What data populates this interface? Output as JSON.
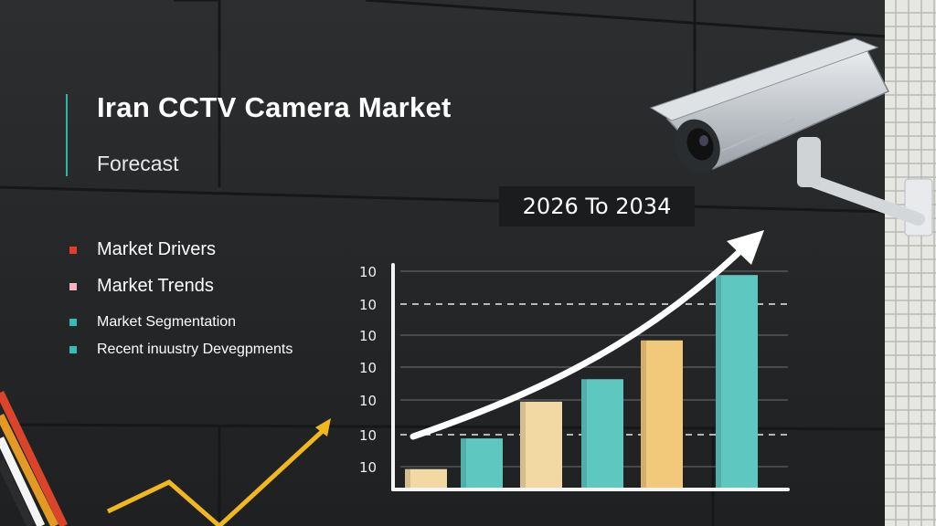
{
  "header": {
    "title": "Iran CCTV Camera Market",
    "subtitle": "Forecast"
  },
  "period_label": "2026 To 2034",
  "bullets": [
    {
      "label": "Market Drivers",
      "color": "#e0402b"
    },
    {
      "label": "Market Trends",
      "color": "#f2b6c0"
    },
    {
      "label": "Market Segmentation",
      "color": "#32c1b0"
    },
    {
      "label": "Recent inuustry Devegpments",
      "color": "#32c1b0"
    }
  ],
  "chart_data": {
    "type": "bar",
    "title": "",
    "xlabel": "",
    "ylabel": "",
    "y_tick_labels": [
      "10",
      "10",
      "10",
      "10",
      "10",
      "10",
      "10"
    ],
    "values": [
      1,
      2.5,
      4.3,
      5.4,
      7.3,
      10.5
    ],
    "bar_colors": [
      "#f2d9a4",
      "#5ec7c0",
      "#f2d9a4",
      "#5ec7c0",
      "#f2c87a",
      "#5ec7c0"
    ],
    "ylim": [
      0,
      11
    ],
    "grid": true,
    "trend_arrow": true
  },
  "colors": {
    "background": "#232527",
    "accent": "#2fb5a6",
    "stripe_red": "#d9442a",
    "stripe_orange": "#e39a25",
    "stripe_yellow": "#f0c21e"
  },
  "icons": [
    "cctv-camera-icon"
  ]
}
